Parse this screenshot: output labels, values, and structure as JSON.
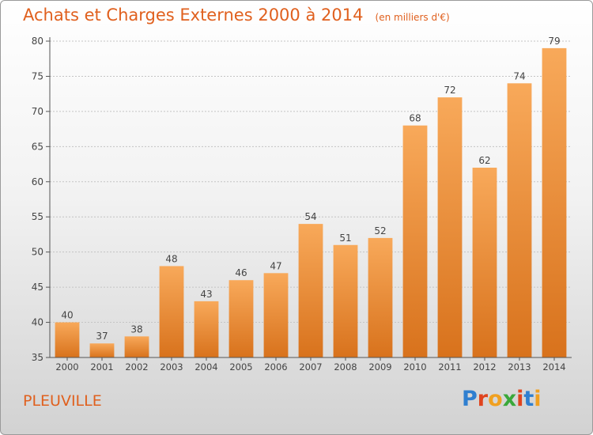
{
  "header": {
    "title": "Achats et Charges Externes 2000 à 2014",
    "subtitle": "(en milliers d'€)"
  },
  "footer": {
    "commune": "PLEUVILLE",
    "logo_letters": [
      "P",
      "r",
      "o",
      "x",
      "i",
      "t",
      "i"
    ],
    "logo_colors": [
      "#2f7fd0",
      "#e0441e",
      "#f0a020",
      "#3aa83a",
      "#e0441e",
      "#2f7fd0",
      "#f0a020"
    ]
  },
  "chart_data": {
    "type": "bar",
    "categories": [
      "2000",
      "2001",
      "2002",
      "2003",
      "2004",
      "2005",
      "2006",
      "2007",
      "2008",
      "2009",
      "2010",
      "2011",
      "2012",
      "2013",
      "2014"
    ],
    "values": [
      40,
      37,
      38,
      48,
      43,
      46,
      47,
      54,
      51,
      52,
      68,
      72,
      62,
      74,
      79
    ],
    "ylim": [
      35,
      80
    ],
    "yticks": [
      35,
      40,
      45,
      50,
      55,
      60,
      65,
      70,
      75,
      80
    ],
    "grid": true,
    "bar_color_light": "#f8a95a",
    "bar_color_dark": "#d8721c"
  }
}
